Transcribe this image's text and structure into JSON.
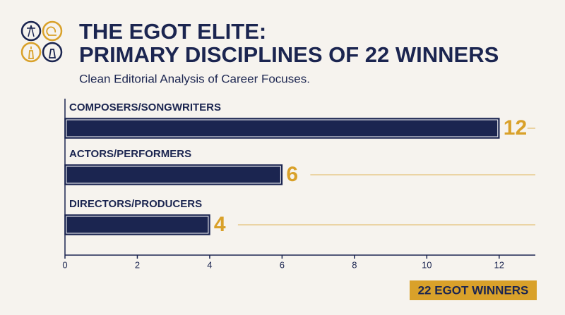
{
  "chart_data": {
    "type": "hbar",
    "title": [
      "THE EGOT ELITE:",
      "PRIMARY DISCIPLINES OF 22 WINNERS"
    ],
    "subtitle": "Clean Editorial Analysis of Career Focuses.",
    "categories": [
      "COMPOSERS/SONGWRITERS",
      "ACTORS/PERFORMERS",
      "DIRECTORS/PRODUCERS"
    ],
    "values": [
      12,
      6,
      4
    ],
    "color": "#1b2550",
    "label_color": "#d9a12a",
    "xlim": [
      0,
      13
    ],
    "xticks": [
      0,
      2,
      4,
      6,
      8,
      10,
      12
    ],
    "annotation": "22 EGOT WINNERS"
  }
}
